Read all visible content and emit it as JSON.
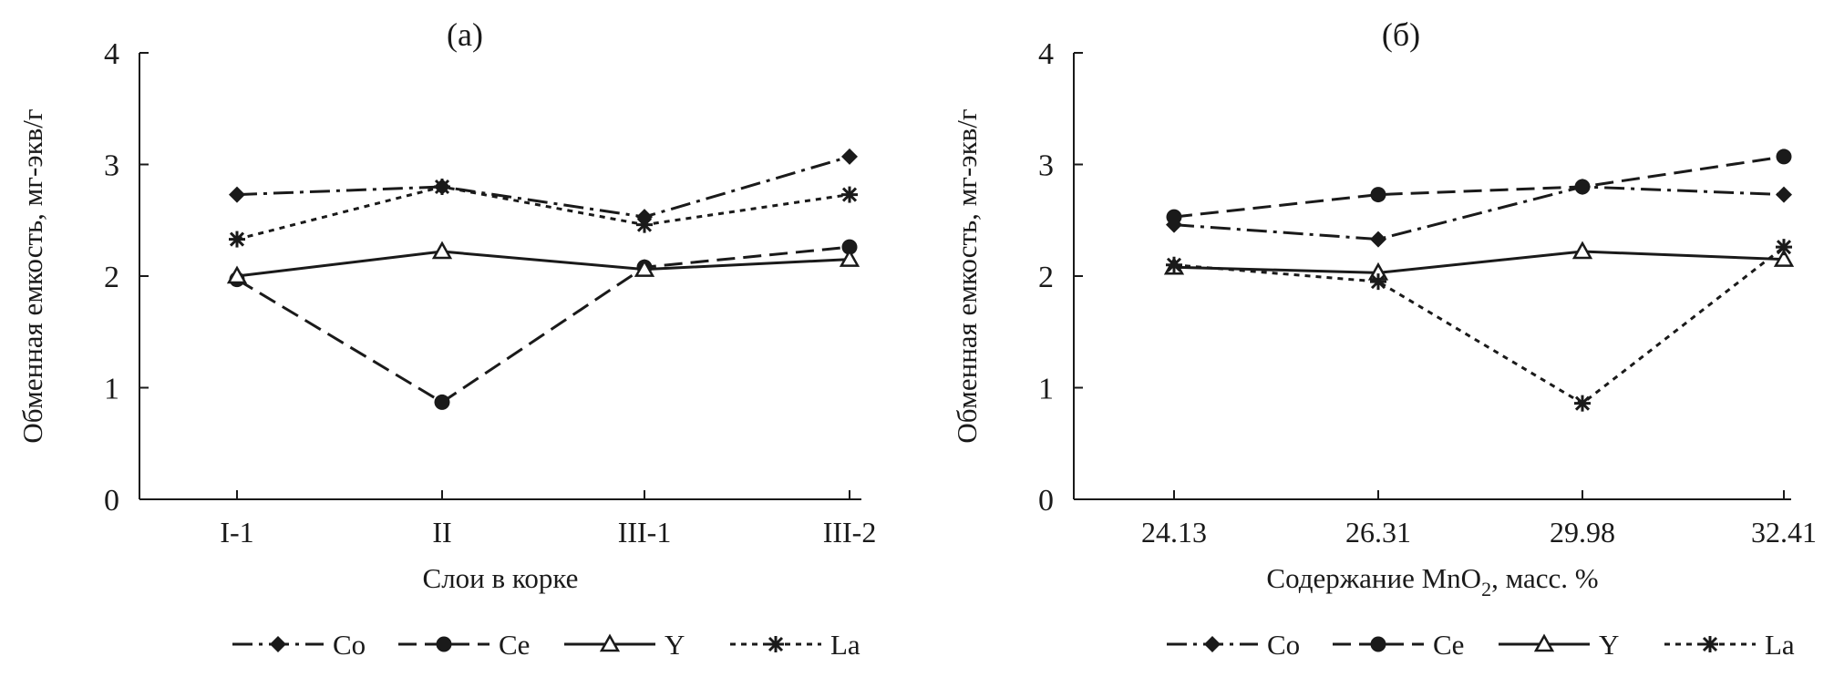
{
  "chart_data": [
    {
      "type": "line",
      "title": "(a)",
      "xlabel": "Слои в корке",
      "ylabel": "Обменная емкость, мг-экв/г",
      "categories": [
        "I-1",
        "II",
        "III-1",
        "III-2"
      ],
      "ylim": [
        0,
        4
      ],
      "yticks": [
        "0",
        "1",
        "2",
        "3",
        "4"
      ],
      "grid": false,
      "legend_position": "bottom",
      "series": [
        {
          "name": "Co",
          "values": [
            2.73,
            2.8,
            2.53,
            3.07
          ],
          "color": "#1a1a1a",
          "marker": "diamond",
          "dash": "long-dash-dot"
        },
        {
          "name": "Ce",
          "values": [
            1.97,
            0.87,
            2.08,
            2.26
          ],
          "color": "#1a1a1a",
          "marker": "circle",
          "dash": "long-dash"
        },
        {
          "name": "Y",
          "values": [
            2.0,
            2.22,
            2.06,
            2.15
          ],
          "color": "#1a1a1a",
          "marker": "triangle",
          "dash": "solid"
        },
        {
          "name": "La",
          "values": [
            2.33,
            2.8,
            2.46,
            2.73
          ],
          "color": "#1a1a1a",
          "marker": "asterisk",
          "dash": "dotted"
        }
      ]
    },
    {
      "type": "line",
      "title": "(б)",
      "xlabel": "Содержание MnO",
      "xlabel_sub": "2",
      "xlabel_suffix": ", масс. %",
      "ylabel": "Обменная емкость, мг-экв/г",
      "categories": [
        "24.13",
        "26.31",
        "29.98",
        "32.41"
      ],
      "ylim": [
        0,
        4
      ],
      "yticks": [
        "0",
        "1",
        "2",
        "3",
        "4"
      ],
      "grid": false,
      "legend_position": "bottom",
      "series": [
        {
          "name": "Co",
          "values": [
            2.46,
            2.33,
            2.8,
            2.73
          ],
          "color": "#1a1a1a",
          "marker": "diamond",
          "dash": "long-dash-dot"
        },
        {
          "name": "Ce",
          "values": [
            2.53,
            2.73,
            2.8,
            3.07
          ],
          "color": "#1a1a1a",
          "marker": "circle",
          "dash": "long-dash"
        },
        {
          "name": "Y",
          "values": [
            2.08,
            2.03,
            2.22,
            2.15
          ],
          "color": "#1a1a1a",
          "marker": "triangle",
          "dash": "solid"
        },
        {
          "name": "La",
          "values": [
            2.1,
            1.95,
            0.86,
            2.26
          ],
          "color": "#1a1a1a",
          "marker": "asterisk",
          "dash": "dotted"
        }
      ]
    }
  ]
}
